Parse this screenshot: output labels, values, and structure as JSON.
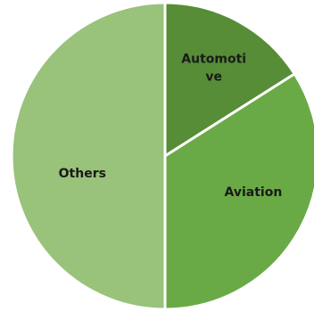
{
  "chart_data": {
    "type": "pie",
    "title": "",
    "slices": [
      {
        "label": "Automoti ve",
        "label_lines": [
          "Automoti",
          "ve"
        ],
        "value": 16,
        "color": "#568d36"
      },
      {
        "label": "Aviation",
        "label_lines": [
          "Aviation"
        ],
        "value": 34,
        "color": "#6aaa46"
      },
      {
        "label": "Others",
        "label_lines": [
          "Others"
        ],
        "value": 50,
        "color": "#99c27a"
      }
    ],
    "start_at": "top",
    "direction": "clockwise",
    "legend": "none"
  }
}
